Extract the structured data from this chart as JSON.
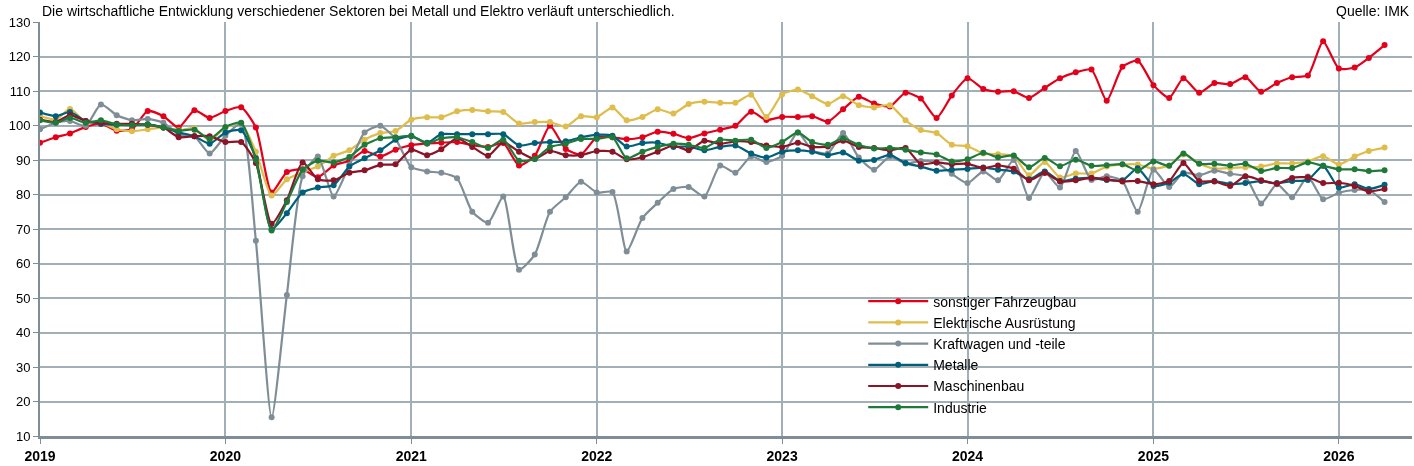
{
  "chart_data": {
    "type": "line",
    "title": "Die wirtschaftliche Entwicklung verschiedener Sektoren bei Metall und Elektro verläuft unterschiedlich.",
    "annotations": [
      "Quelle: IMK"
    ],
    "x": [
      "2019-01",
      "2019-02",
      "2019-03",
      "2019-04",
      "2019-05",
      "2019-06",
      "2019-07",
      "2019-08",
      "2019-09",
      "2019-10",
      "2019-11",
      "2019-12",
      "2020-01",
      "2020-02",
      "2020-03",
      "2020-04",
      "2020-05",
      "2020-06",
      "2020-07",
      "2020-08",
      "2020-09",
      "2020-10",
      "2020-11",
      "2020-12",
      "2021-01",
      "2021-02",
      "2021-03",
      "2021-04",
      "2021-05",
      "2021-06",
      "2021-07",
      "2021-08",
      "2021-09",
      "2021-10",
      "2021-11",
      "2021-12",
      "2022-01",
      "2022-02",
      "2022-03",
      "2022-04",
      "2022-05",
      "2022-06",
      "2022-07",
      "2022-08",
      "2022-09",
      "2022-10",
      "2022-11",
      "2022-12",
      "2023-01",
      "2023-02",
      "2023-03",
      "2023-04",
      "2023-05",
      "2023-06",
      "2023-07",
      "2023-08",
      "2023-09",
      "2023-10",
      "2023-11",
      "2023-12",
      "2024-01",
      "2024-02",
      "2024-03",
      "2024-04",
      "2024-05",
      "2024-06",
      "2024-07",
      "2024-08",
      "2024-09",
      "2024-10",
      "2024-11",
      "2024-12",
      "2025-01",
      "2025-02",
      "2025-03",
      "2025-04",
      "2025-05",
      "2025-06",
      "2025-07",
      "2025-08",
      "2025-09",
      "2025-10",
      "2025-11",
      "2025-12",
      "2026-01",
      "2026-02",
      "2026-03",
      "2026-04"
    ],
    "series": [
      {
        "name": "sonstiger Fahrzeugbau",
        "color": "#e3001b",
        "values": [
          95,
          96.6,
          97.7,
          99.6,
          100.5,
          98.5,
          98.9,
          104.2,
          102.7,
          99.4,
          104.4,
          102.2,
          104.2,
          105.3,
          99.4,
          80.6,
          86.5,
          87.3,
          85,
          88.4,
          89.8,
          92.6,
          91,
          93,
          94.3,
          94.8,
          95,
          95.2,
          94.3,
          93.8,
          94.9,
          88.4,
          91.2,
          99.9,
          93.2,
          91.6,
          96.6,
          96.6,
          96,
          96.6,
          98.2,
          97.6,
          96.3,
          97.7,
          98.8,
          99.9,
          104,
          101.6,
          102.5,
          102.5,
          102.7,
          101.1,
          104.7,
          108.3,
          106.4,
          105.5,
          109.5,
          107.8,
          102.2,
          108.7,
          113.7,
          110.6,
          109.8,
          109.9,
          108,
          110.9,
          113.7,
          115.4,
          116.2,
          107.2,
          117,
          118.8,
          111.7,
          108,
          113.7,
          109.5,
          112.3,
          112,
          114,
          109.8,
          112.3,
          114,
          114.5,
          124.4,
          116.5,
          116.8,
          119.6,
          123.3
        ]
      },
      {
        "name": "Elektrische Ausrüstung",
        "color": "#dfbd4c",
        "values": [
          102.8,
          101.7,
          104.8,
          101,
          100.8,
          98.9,
          98.3,
          98.9,
          99.4,
          98.6,
          99.2,
          95.6,
          99.4,
          100.6,
          92.4,
          79.7,
          84.4,
          86.5,
          88.1,
          91.2,
          92.8,
          95.9,
          97.8,
          98.4,
          101.7,
          102.4,
          102.4,
          104.1,
          104.5,
          104.1,
          103.9,
          100.6,
          101,
          101,
          99.7,
          102.7,
          102.4,
          105.2,
          101.5,
          102.5,
          104.7,
          103.5,
          106.2,
          106.9,
          106.6,
          106.6,
          108.9,
          102.5,
          109,
          110.4,
          108.5,
          106.2,
          108.5,
          105.9,
          105.2,
          105.9,
          101.5,
          98.7,
          97.8,
          94.4,
          94,
          91.9,
          91.7,
          91.1,
          85.6,
          89.4,
          84.9,
          86.1,
          86.1,
          88.1,
          88.7,
          88.7,
          87.5,
          88.4,
          91.6,
          89,
          87.5,
          87.7,
          87.9,
          88.1,
          89,
          89,
          89.6,
          91.1,
          88.7,
          91,
          92.6,
          93.6
        ]
      },
      {
        "name": "Kraftwagen und -teile",
        "color": "#7f8e96",
        "values": [
          98.9,
          100.8,
          101.3,
          99.9,
          106.1,
          103,
          101.5,
          101.9,
          100.8,
          97.5,
          96.9,
          91.9,
          97,
          100.6,
          66.6,
          15.4,
          50.9,
          85.3,
          91,
          79.4,
          88.6,
          98,
          99.9,
          96.1,
          87.9,
          86.7,
          86.3,
          84.7,
          75,
          71.8,
          79.4,
          58.2,
          62.6,
          75,
          79.2,
          83.7,
          80.6,
          80.7,
          63.5,
          73.2,
          77.6,
          81.6,
          82.2,
          79.4,
          88.4,
          86.3,
          91,
          89.4,
          91.2,
          98,
          92.8,
          91.9,
          97.8,
          90.7,
          87.2,
          91,
          89,
          89.7,
          89.3,
          86,
          83.3,
          86.7,
          84.1,
          90,
          79,
          86.5,
          82,
          92.6,
          84.2,
          85.3,
          83.9,
          75,
          87.2,
          82.2,
          86.3,
          85.6,
          86.9,
          86,
          85.2,
          77.4,
          83,
          79.2,
          85.2,
          78.6,
          80.5,
          81.3,
          81.3,
          77.8
        ]
      },
      {
        "name": "Metalle",
        "color": "#005f7a",
        "values": [
          103.8,
          102.7,
          103.9,
          101.3,
          100.5,
          100.2,
          100.2,
          100.3,
          99.4,
          98,
          96.9,
          94.7,
          98,
          98.6,
          90.5,
          69.9,
          74.6,
          80.6,
          82,
          82.7,
          88.1,
          90.5,
          92.8,
          95.9,
          96.9,
          95,
          97.5,
          97.5,
          97.5,
          97.5,
          97.5,
          94.2,
          94.9,
          95.2,
          95.4,
          96.6,
          97.3,
          97,
          93.9,
          94.9,
          95,
          93.8,
          93.9,
          92.8,
          93.8,
          94.2,
          91.9,
          90.7,
          92.4,
          92.8,
          92.4,
          91.4,
          92.2,
          89.8,
          90,
          91.5,
          89.1,
          88.1,
          86.9,
          87.2,
          87.4,
          87.8,
          87.2,
          86.7,
          84.4,
          86.7,
          83.9,
          84.6,
          84.8,
          84.2,
          84.1,
          87.6,
          82.5,
          83.4,
          86,
          83,
          83.9,
          83,
          83.3,
          83.9,
          83.3,
          83.9,
          84.2,
          88.3,
          82,
          83,
          81.6,
          82.8
        ]
      },
      {
        "name": "Maschinenbau",
        "color": "#8b1426",
        "values": [
          101.7,
          101,
          103,
          101.3,
          100.8,
          100.5,
          100.5,
          100.2,
          99.4,
          96.6,
          96.9,
          96.9,
          95.2,
          95.2,
          89.1,
          71.5,
          78.3,
          89.3,
          84.4,
          84.1,
          86.3,
          87,
          88.6,
          88.8,
          93,
          91.4,
          93.1,
          96.3,
          93.8,
          91.2,
          95.2,
          92.4,
          90.3,
          92.6,
          91.4,
          91.4,
          92.6,
          92.4,
          90.2,
          90.8,
          92.4,
          94.2,
          92.8,
          95.6,
          94.7,
          95.4,
          95.2,
          94.2,
          93.8,
          95,
          93.8,
          93.9,
          95.6,
          93.8,
          93.5,
          92.8,
          93.5,
          88.8,
          89.3,
          88.8,
          88.9,
          87.7,
          88.4,
          87.5,
          84.1,
          86.2,
          83.8,
          84.1,
          84.8,
          84.4,
          83.8,
          83.9,
          83,
          83.9,
          89.1,
          83.9,
          83.8,
          82.5,
          85.3,
          84.1,
          83.1,
          84.8,
          85,
          83.3,
          83.4,
          82.5,
          80.9,
          81.6
        ]
      },
      {
        "name": "Industrie",
        "color": "#1f7a3a",
        "values": [
          101.5,
          100.8,
          102.2,
          100.8,
          101.5,
          100.3,
          100.1,
          100.3,
          99.4,
          98.5,
          98.8,
          96.1,
          99.6,
          100.8,
          90,
          69.6,
          77.8,
          87.2,
          89.8,
          89.3,
          90.9,
          94.4,
          96.3,
          96.6,
          97,
          94.8,
          96.3,
          96.6,
          95.2,
          93.5,
          95.9,
          89.8,
          90.3,
          93.8,
          94.7,
          96.1,
          96.1,
          96.6,
          90.5,
          92.4,
          93.8,
          94.7,
          94.4,
          93.5,
          95.9,
          95.6,
          95.9,
          93.5,
          95.2,
          98,
          95.2,
          94.4,
          96.3,
          94.4,
          93.3,
          93.5,
          93,
          92.2,
          91.6,
          89.6,
          90.2,
          92.1,
          90.8,
          91.3,
          87.9,
          90.6,
          88.2,
          90.1,
          88.3,
          88.5,
          88.8,
          86.9,
          89.6,
          88.3,
          91.9,
          88.9,
          88.9,
          88.4,
          88.9,
          86.8,
          87.7,
          87.7,
          89.3,
          88.3,
          87.3,
          87.3,
          86.8,
          87
        ]
      }
    ],
    "xlim": [
      "2019-01-01",
      "2026-05-25"
    ],
    "xticks": [
      {
        "value": "2019-01-01",
        "label": "2019"
      },
      {
        "value": "2020-01-01",
        "label": "2020"
      },
      {
        "value": "2021-01-01",
        "label": "2021"
      },
      {
        "value": "2022-01-01",
        "label": "2022"
      },
      {
        "value": "2023-01-01",
        "label": "2023"
      },
      {
        "value": "2024-01-01",
        "label": "2024"
      },
      {
        "value": "2025-01-01",
        "label": "2025"
      },
      {
        "value": "2026-01-01",
        "label": "2026"
      }
    ],
    "ylim": [
      10,
      130
    ],
    "yticks": [
      10,
      20,
      30,
      40,
      50,
      60,
      70,
      80,
      90,
      100,
      110,
      120,
      130
    ],
    "grid": true,
    "legend": "bottom",
    "marker": "circle",
    "line_style": "solid"
  }
}
